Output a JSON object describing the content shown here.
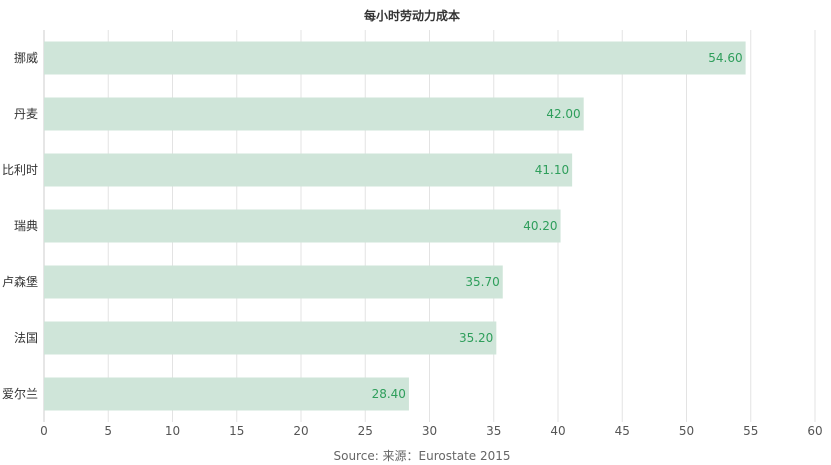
{
  "chart_data": {
    "type": "bar",
    "orientation": "horizontal",
    "title": "每小时劳动力成本",
    "source": "Source: 来源：Eurostate 2015",
    "categories": [
      "挪威",
      "丹麦",
      "比利时",
      "瑞典",
      "卢森堡",
      "法国",
      "爱尔兰"
    ],
    "values": [
      54.6,
      42.0,
      41.1,
      40.2,
      35.7,
      35.2,
      28.4
    ],
    "value_labels": [
      "54.60",
      "42.00",
      "41.10",
      "40.20",
      "35.70",
      "35.20",
      "28.40"
    ],
    "xlim": [
      0,
      60
    ],
    "xticks": [
      0,
      5,
      10,
      15,
      20,
      25,
      30,
      35,
      40,
      45,
      50,
      55,
      60
    ],
    "xlabel": "",
    "ylabel": "",
    "grid": true,
    "legend": "none",
    "colors": {
      "bar": "#cfe5d9",
      "data_label": "#2e9e5b",
      "grid": "#e3e3e3",
      "text": "#333333"
    }
  }
}
